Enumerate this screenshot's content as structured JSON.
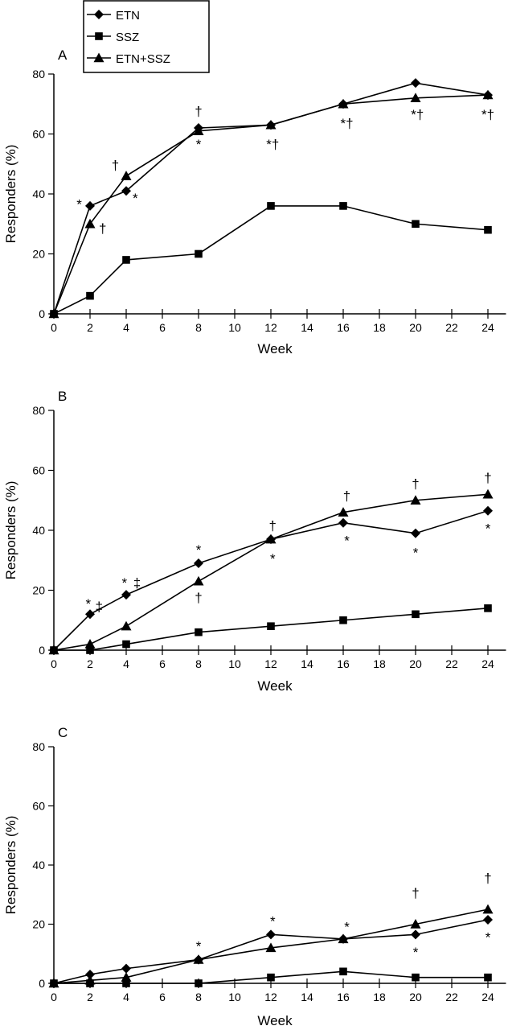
{
  "legend": {
    "entries": [
      {
        "label": "ETN",
        "marker": "diamond"
      },
      {
        "label": "SSZ",
        "marker": "square"
      },
      {
        "label": "ETN+SSZ",
        "marker": "triangle"
      }
    ]
  },
  "chart_data": [
    {
      "type": "line",
      "panel_label": "A",
      "xlabel": "Week",
      "ylabel": "Responders (%)",
      "x": [
        0,
        2,
        4,
        8,
        12,
        16,
        20,
        24
      ],
      "xticks": [
        0,
        2,
        4,
        6,
        8,
        10,
        12,
        14,
        16,
        18,
        20,
        22,
        24
      ],
      "yticks": [
        0,
        20,
        40,
        60,
        80
      ],
      "xlim": [
        0,
        25
      ],
      "ylim": [
        0,
        80
      ],
      "series": [
        {
          "name": "ETN",
          "marker": "diamond",
          "values": [
            0,
            36,
            41,
            62,
            63,
            70,
            77,
            73
          ]
        },
        {
          "name": "SSZ",
          "marker": "square",
          "values": [
            0,
            6,
            18,
            20,
            36,
            36,
            30,
            28
          ]
        },
        {
          "name": "ETN+SSZ",
          "marker": "triangle",
          "values": [
            0,
            30,
            46,
            61,
            63,
            70,
            72,
            73
          ]
        }
      ],
      "annotations": [
        {
          "text": "*",
          "x": 1.4,
          "y": 35
        },
        {
          "text": "†",
          "x": 2.7,
          "y": 27
        },
        {
          "text": "†",
          "x": 3.4,
          "y": 48
        },
        {
          "text": "*",
          "x": 4.5,
          "y": 37
        },
        {
          "text": "†",
          "x": 8.0,
          "y": 66
        },
        {
          "text": "*",
          "x": 8.0,
          "y": 55
        },
        {
          "text": "*†",
          "x": 12.1,
          "y": 55
        },
        {
          "text": "*†",
          "x": 16.2,
          "y": 62
        },
        {
          "text": "*†",
          "x": 20.1,
          "y": 65
        },
        {
          "text": "*†",
          "x": 24.0,
          "y": 65
        }
      ]
    },
    {
      "type": "line",
      "panel_label": "B",
      "xlabel": "Week",
      "ylabel": "Responders (%)",
      "x": [
        0,
        2,
        4,
        8,
        12,
        16,
        20,
        24
      ],
      "xticks": [
        0,
        2,
        4,
        6,
        8,
        10,
        12,
        14,
        16,
        18,
        20,
        22,
        24
      ],
      "yticks": [
        0,
        20,
        40,
        60,
        80
      ],
      "xlim": [
        0,
        25
      ],
      "ylim": [
        0,
        80
      ],
      "series": [
        {
          "name": "ETN",
          "marker": "diamond",
          "values": [
            0,
            12,
            18.5,
            29,
            37,
            42.5,
            39,
            46.5
          ]
        },
        {
          "name": "SSZ",
          "marker": "square",
          "values": [
            0,
            0,
            2,
            6,
            8,
            10,
            12,
            14
          ]
        },
        {
          "name": "ETN+SSZ",
          "marker": "triangle",
          "values": [
            0,
            2,
            8,
            23,
            37,
            46,
            50,
            52
          ]
        }
      ],
      "annotations": [
        {
          "text": "*",
          "x": 1.9,
          "y": 14
        },
        {
          "text": "‡",
          "x": 2.5,
          "y": 13
        },
        {
          "text": "*",
          "x": 3.9,
          "y": 21
        },
        {
          "text": "‡",
          "x": 4.6,
          "y": 21
        },
        {
          "text": "*",
          "x": 8.0,
          "y": 32
        },
        {
          "text": "†",
          "x": 8.0,
          "y": 16
        },
        {
          "text": "†",
          "x": 12.1,
          "y": 40
        },
        {
          "text": "*",
          "x": 12.1,
          "y": 29
        },
        {
          "text": "†",
          "x": 16.2,
          "y": 50
        },
        {
          "text": "*",
          "x": 16.2,
          "y": 35
        },
        {
          "text": "†",
          "x": 20.0,
          "y": 54
        },
        {
          "text": "*",
          "x": 20.0,
          "y": 31
        },
        {
          "text": "†",
          "x": 24.0,
          "y": 56
        },
        {
          "text": "*",
          "x": 24.0,
          "y": 39
        }
      ]
    },
    {
      "type": "line",
      "panel_label": "C",
      "xlabel": "Week",
      "ylabel": "Responders (%)",
      "x": [
        0,
        2,
        4,
        8,
        12,
        16,
        20,
        24
      ],
      "xticks": [
        0,
        2,
        4,
        6,
        8,
        10,
        12,
        14,
        16,
        18,
        20,
        22,
        24
      ],
      "yticks": [
        0,
        20,
        40,
        60,
        80
      ],
      "xlim": [
        0,
        25
      ],
      "ylim": [
        0,
        80
      ],
      "series": [
        {
          "name": "ETN",
          "marker": "diamond",
          "values": [
            0,
            3,
            5,
            8,
            16.5,
            15,
            16.5,
            21.5
          ]
        },
        {
          "name": "SSZ",
          "marker": "square",
          "values": [
            0,
            0,
            0,
            0,
            2,
            4,
            2,
            2
          ]
        },
        {
          "name": "ETN+SSZ",
          "marker": "triangle",
          "values": [
            0,
            1,
            2,
            8,
            12,
            15,
            20,
            25
          ]
        }
      ],
      "annotations": [
        {
          "text": "*",
          "x": 8.0,
          "y": 11
        },
        {
          "text": "*",
          "x": 12.1,
          "y": 19.5
        },
        {
          "text": "*",
          "x": 16.2,
          "y": 17.5
        },
        {
          "text": "*",
          "x": 20.0,
          "y": 9
        },
        {
          "text": "†",
          "x": 20.0,
          "y": 29
        },
        {
          "text": "*",
          "x": 24.0,
          "y": 14
        },
        {
          "text": "†",
          "x": 24.0,
          "y": 34
        }
      ]
    }
  ]
}
